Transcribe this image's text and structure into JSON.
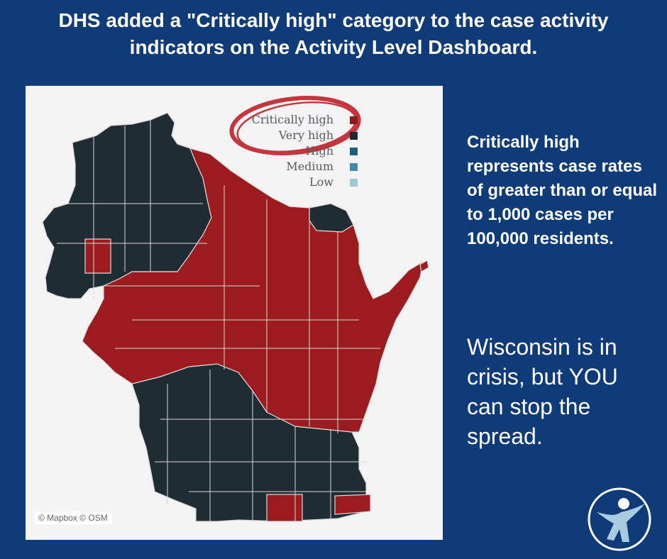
{
  "header": {
    "line1": "DHS added a \"Critically high\" category to the case activity",
    "line2": "indicators on the Activity Level Dashboard."
  },
  "legend": [
    {
      "label": "Critically high",
      "color": "#8b1a1a"
    },
    {
      "label": "Very high",
      "color": "#1c2a33"
    },
    {
      "label": "High",
      "color": "#1d5f77"
    },
    {
      "label": "Medium",
      "color": "#3f8aa8"
    },
    {
      "label": "Low",
      "color": "#9fc6d7"
    }
  ],
  "map": {
    "attribution": "© Mapbox © OSM",
    "critical_color": "#9b1b1f",
    "very_high_color": "#1f2c34",
    "circle_color": "#c6343c"
  },
  "sidebar": {
    "definition": "Critically high represents case rates of greater than or equal to 1,000 cases per 100,000 residents.",
    "crisis_message": "Wisconsin is in crisis, but YOU can stop the spread."
  },
  "logo": {
    "icon": "person-figure-logo-icon"
  }
}
